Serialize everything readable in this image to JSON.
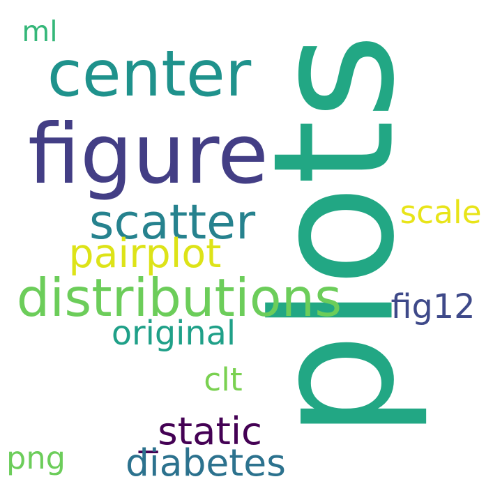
{
  "words": [
    {
      "id": "plots",
      "text": "plots",
      "color": "#22a784"
    },
    {
      "id": "center",
      "text": "center",
      "color": "#1f928c"
    },
    {
      "id": "figure",
      "text": "figure",
      "color": "#433e85"
    },
    {
      "id": "scatter",
      "text": "scatter",
      "color": "#26828e"
    },
    {
      "id": "distributions",
      "text": "distributions",
      "color": "#6ccd5a"
    },
    {
      "id": "pairplot",
      "text": "pairplot",
      "color": "#dde318"
    },
    {
      "id": "scale",
      "text": "scale",
      "color": "#e8e419"
    },
    {
      "id": "fig12",
      "text": "fig12",
      "color": "#3e4989"
    },
    {
      "id": "original",
      "text": "original",
      "color": "#1fa088"
    },
    {
      "id": "clt",
      "text": "clt",
      "color": "#7ad151"
    },
    {
      "id": "static",
      "text": "_static",
      "color": "#440154"
    },
    {
      "id": "diabetes",
      "text": "diabetes",
      "color": "#2c728e"
    },
    {
      "id": "png",
      "text": "png",
      "color": "#6ccd5a"
    },
    {
      "id": "ml",
      "text": "ml",
      "color": "#35b779"
    }
  ]
}
